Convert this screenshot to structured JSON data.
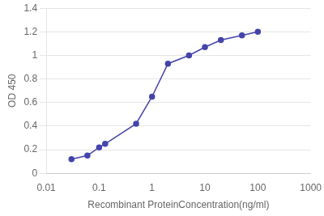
{
  "chart_data": {
    "type": "line",
    "xlabel": "Recombinant ProteinConcentration(ng/ml)",
    "ylabel": "OD 450",
    "x": [
      0.03,
      0.06,
      0.1,
      0.13,
      0.5,
      1.0,
      2.0,
      5.0,
      10.0,
      20.0,
      50.0,
      100.0
    ],
    "values": [
      0.12,
      0.15,
      0.22,
      0.25,
      0.42,
      0.65,
      0.93,
      1.0,
      1.07,
      1.13,
      1.17,
      1.2
    ],
    "color": "#4444aa",
    "marker": "circle",
    "log": "x",
    "xlim": [
      0.01,
      1000
    ],
    "xticks": [
      0.01,
      0.1,
      1,
      10,
      100,
      1000
    ],
    "ylim": [
      0,
      1.4
    ],
    "yticks": [
      0,
      0.2,
      0.4,
      0.6,
      0.8,
      1,
      1.2,
      1.4
    ],
    "grid": "y"
  }
}
